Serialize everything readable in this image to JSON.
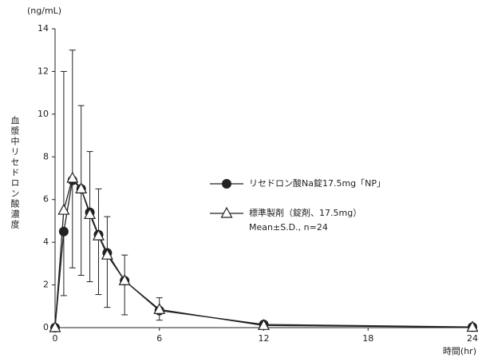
{
  "chart_data": {
    "type": "line",
    "y_unit": "(ng/mL)",
    "y_label": "血漿中リセドロン酸濃度",
    "x_label": "時間(hr)",
    "annotation": "Mean±S.D., n=24",
    "x": [
      0,
      0.5,
      1,
      1.5,
      2,
      2.5,
      3,
      4,
      6,
      12,
      24
    ],
    "series": [
      {
        "name": "リセドロン酸Na錠17.5mg「NP」",
        "color": "#222222",
        "marker": "circle",
        "error_bar": "lower",
        "values": [
          0,
          4.5,
          6.9,
          6.5,
          5.4,
          4.35,
          3.5,
          2.2,
          0.8,
          0.15,
          0.03
        ],
        "errors": [
          null,
          3.0,
          4.1,
          4.05,
          3.25,
          2.8,
          2.55,
          1.6,
          0.45,
          null,
          null
        ]
      },
      {
        "name": "標準製剤（錠剤、17.5mg）",
        "color": "#222222",
        "marker": "triangle",
        "error_bar": "upper",
        "values": [
          0,
          5.5,
          7.0,
          6.5,
          5.3,
          4.3,
          3.4,
          2.2,
          0.85,
          0.1,
          0.02
        ],
        "errors": [
          null,
          6.5,
          6.0,
          3.9,
          2.95,
          2.2,
          1.8,
          1.2,
          0.55,
          null,
          null
        ]
      }
    ],
    "xlim": [
      0,
      24
    ],
    "xticks": [
      0,
      6,
      12,
      18,
      24
    ],
    "ylim": [
      0,
      14
    ],
    "yticks": [
      0,
      2,
      4,
      6,
      8,
      10,
      12,
      14
    ],
    "grid": false
  }
}
